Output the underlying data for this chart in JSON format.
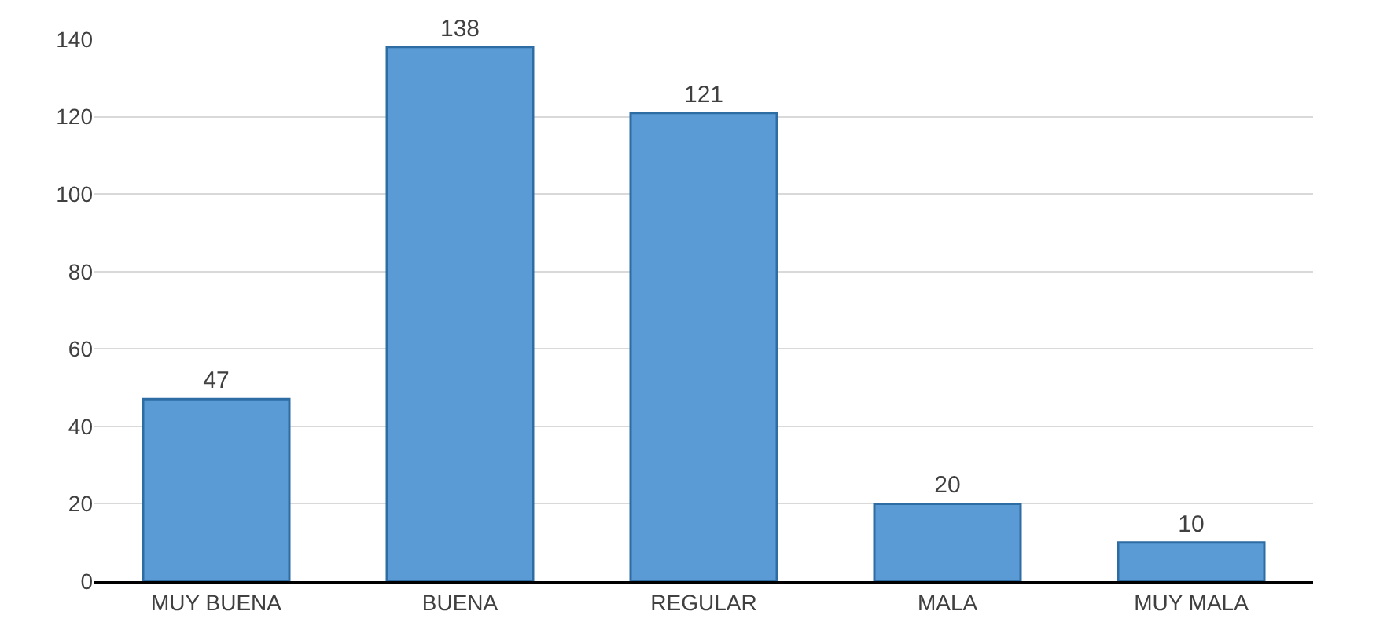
{
  "chart_data": {
    "type": "bar",
    "categories": [
      "MUY BUENA",
      "BUENA",
      "REGULAR",
      "MALA",
      "MUY MALA"
    ],
    "values": [
      47,
      138,
      121,
      20,
      10
    ],
    "color": "#5b9bd5",
    "ylim": [
      0,
      140
    ],
    "yticks": [
      0,
      20,
      40,
      60,
      80,
      100,
      120,
      140
    ],
    "grid": "y",
    "data_labels": true
  }
}
